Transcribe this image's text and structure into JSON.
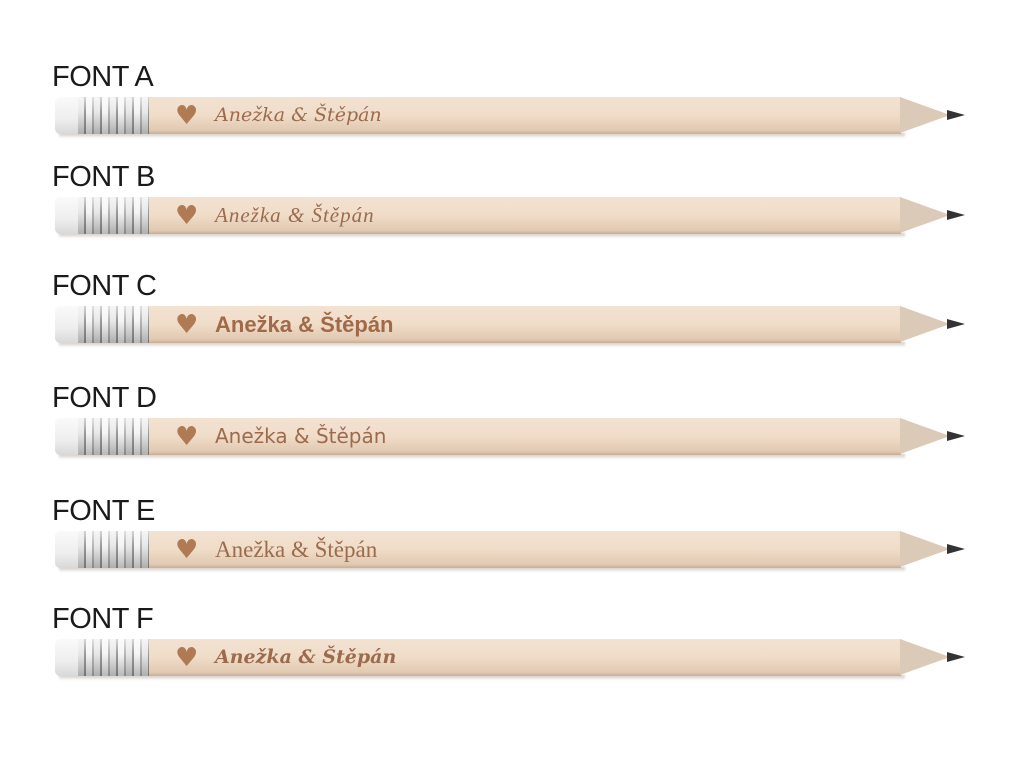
{
  "colors": {
    "engraving": "#9b6b4d",
    "wood": "#f0dcc8",
    "label": "#1a1a1a"
  },
  "pencils": [
    {
      "label": "FONT A",
      "text": "Anežka & Štěpán",
      "icon": "heart-icon"
    },
    {
      "label": "FONT B",
      "text": "Anežka & Štěpán",
      "icon": "heart-icon"
    },
    {
      "label": "FONT C",
      "text": "Anežka & Štěpán",
      "icon": "heart-icon"
    },
    {
      "label": "FONT D",
      "text": "Anežka & Štěpán",
      "icon": "heart-icon"
    },
    {
      "label": "FONT E",
      "text": "Anežka & Štěpán",
      "icon": "heart-icon"
    },
    {
      "label": "FONT F",
      "text": "Anežka & Štěpán",
      "icon": "heart-icon"
    }
  ]
}
